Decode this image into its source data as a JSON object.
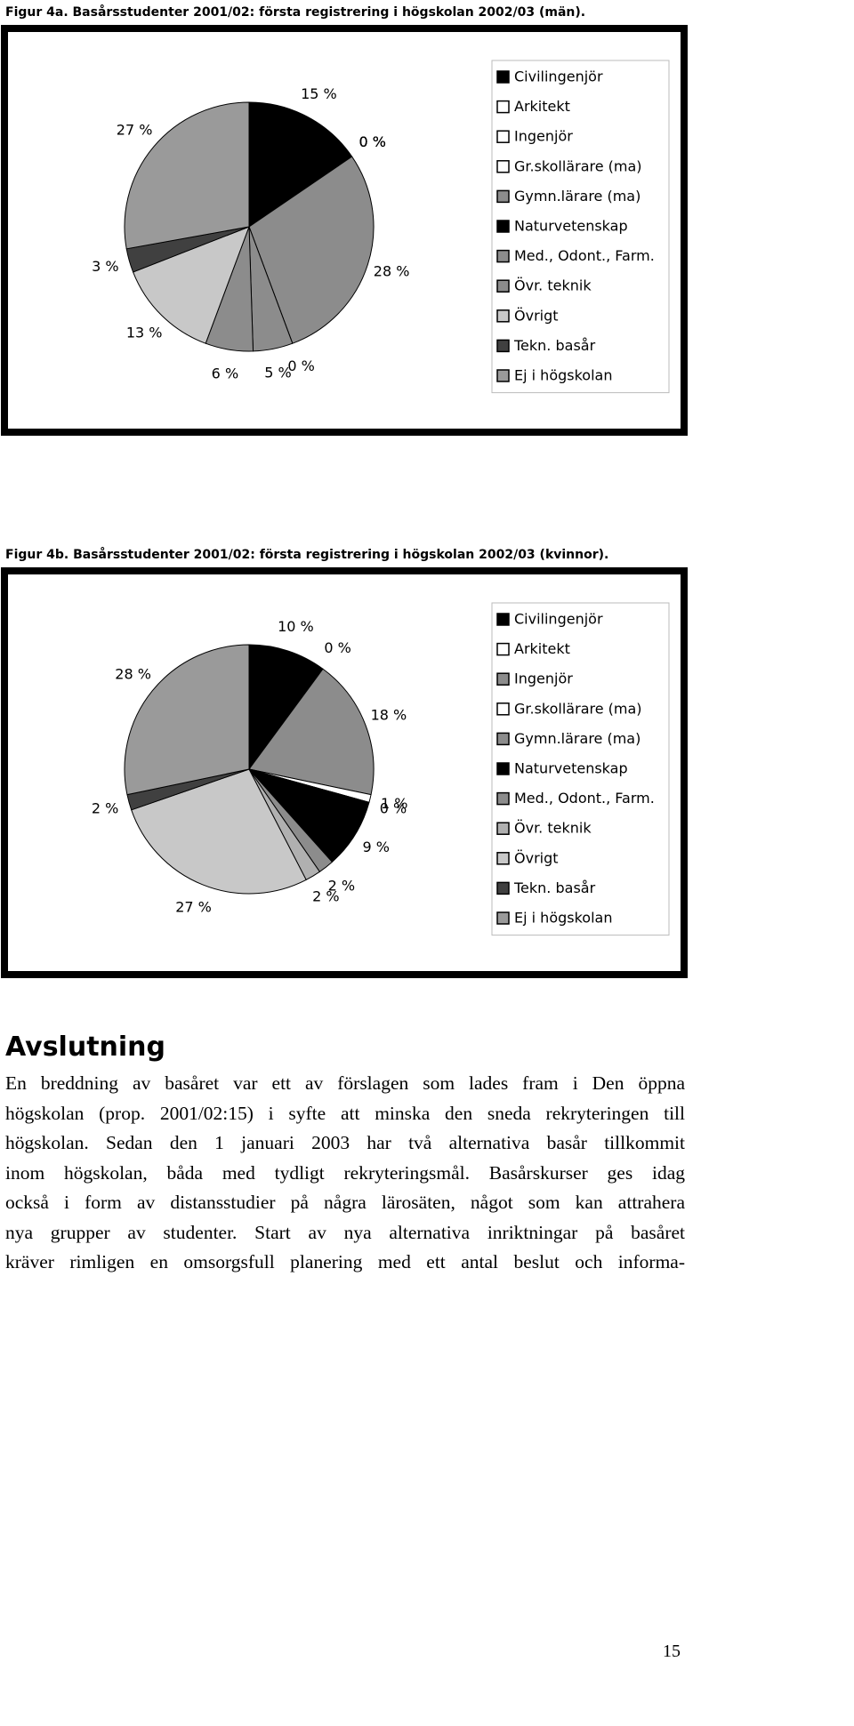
{
  "chart_data": [
    {
      "type": "pie",
      "title": "Figur 4a. Basårsstudenter 2001/02: första registrering i högskolan 2002/03 (män).",
      "categories": [
        "Civilingenjör",
        "Arkitekt",
        "Ingenjör",
        "Gr.skollärare (ma)",
        "Gymn.lärare (ma)",
        "Naturvetenskap",
        "Med., Odont., Farm.",
        "Övr. teknik",
        "Övrigt",
        "Tekn. basår",
        "Ej i högskolan"
      ],
      "values": [
        15,
        0,
        0,
        0,
        28,
        0,
        5,
        6,
        13,
        3,
        27
      ],
      "value_labels": [
        "15 %",
        "0 %",
        "0 %",
        "0 %",
        "28 %",
        "0 %",
        "5 %",
        "6 %",
        "13 %",
        "3 %",
        "27 %"
      ],
      "colors": [
        "#000000",
        "#ffffff",
        "#ffffff",
        "#ffffff",
        "#8c8c8c",
        "#000000",
        "#8c8c8c",
        "#8c8c8c",
        "#c8c8c8",
        "#404040",
        "#9a9a9a"
      ]
    },
    {
      "type": "pie",
      "title": "Figur 4b. Basårsstudenter 2001/02: första registrering i högskolan 2002/03 (kvinnor).",
      "categories": [
        "Civilingenjör",
        "Arkitekt",
        "Ingenjör",
        "Gr.skollärare (ma)",
        "Gymn.lärare (ma)",
        "Naturvetenskap",
        "Med., Odont., Farm.",
        "Övr. teknik",
        "Övrigt",
        "Tekn. basår",
        "Ej i högskolan"
      ],
      "values": [
        10,
        0,
        18,
        1,
        0,
        9,
        2,
        2,
        27,
        2,
        28
      ],
      "value_labels": [
        "10 %",
        "0 %",
        "18 %",
        "1 %",
        "0 %",
        "9 %",
        "2 %",
        "2 %",
        "27 %",
        "2 %",
        "28 %"
      ],
      "colors": [
        "#000000",
        "#ffffff",
        "#8c8c8c",
        "#ffffff",
        "#8c8c8c",
        "#000000",
        "#8c8c8c",
        "#b0b0b0",
        "#c8c8c8",
        "#404040",
        "#9a9a9a"
      ]
    }
  ],
  "section": {
    "heading": "Avslutning",
    "lines": [
      "En breddning av basåret var ett av förslagen som lades fram i Den öppna",
      "högskolan (prop. 2001/02:15) i syfte att minska den sneda rekryteringen till",
      "högskolan. Sedan den 1 januari 2003 har två alternativa basår tillkommit",
      "inom högskolan, båda med tydligt rekryteringsmål. Basårskurser ges idag",
      "också i form av distansstudier på några lärosäten, något som kan attrahera",
      "nya grupper av studenter. Start av nya alternativa inriktningar på basåret",
      "kräver rimligen en omsorgsfull planering med ett antal beslut och informa-"
    ]
  },
  "page_number": "15"
}
